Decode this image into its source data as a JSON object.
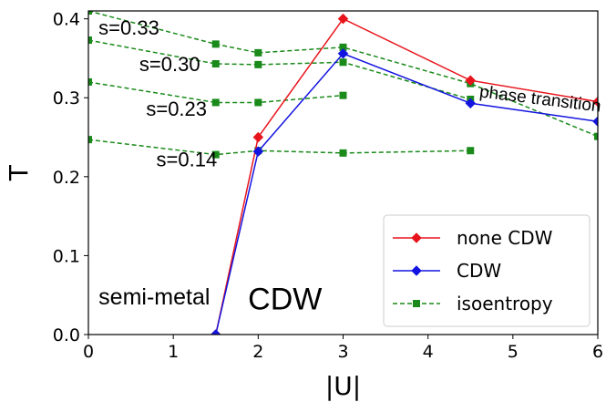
{
  "chart_data": {
    "type": "line",
    "xlabel": "|U|",
    "ylabel": "T",
    "xlim": [
      0,
      6
    ],
    "ylim": [
      0,
      0.41
    ],
    "xticks": [
      0,
      1,
      2,
      3,
      4,
      5,
      6
    ],
    "yticks": [
      0.0,
      0.1,
      0.2,
      0.3,
      0.4
    ],
    "yticklabels": [
      "0.0",
      "0.1",
      "0.2",
      "0.3",
      "0.4"
    ],
    "grid": false,
    "legend_position": "bottom-right",
    "series": [
      {
        "name": "none CDW",
        "color": "#e8141c",
        "marker": "diamond",
        "style": "solid",
        "x": [
          1.5,
          2,
          3,
          4.5,
          6
        ],
        "y": [
          0.0,
          0.25,
          0.4,
          0.322,
          0.295
        ]
      },
      {
        "name": "CDW",
        "color": "#1414e0",
        "marker": "diamond",
        "style": "solid",
        "x": [
          1.5,
          2,
          3,
          4.5,
          6
        ],
        "y": [
          0.0,
          0.232,
          0.356,
          0.293,
          0.27
        ]
      }
    ],
    "isoentropy": {
      "name": "isoentropy",
      "color": "#1a8a1a",
      "marker": "square",
      "style": "dashed",
      "curves": [
        {
          "x": [
            0,
            1.5,
            2,
            3,
            4.5,
            6
          ],
          "y": [
            0.41,
            0.368,
            0.357,
            0.364,
            0.318,
            0.251
          ]
        },
        {
          "x": [
            0,
            1.5,
            2,
            3,
            4.5
          ],
          "y": [
            0.373,
            0.343,
            0.342,
            0.345,
            0.298
          ]
        },
        {
          "x": [
            0,
            1.5,
            2,
            3
          ],
          "y": [
            0.32,
            0.294,
            0.294,
            0.303
          ]
        },
        {
          "x": [
            0,
            1.5,
            2,
            3,
            4.5
          ],
          "y": [
            0.247,
            0.228,
            0.233,
            0.23,
            0.233
          ]
        }
      ]
    },
    "annotations": [
      {
        "text": "s=0.33",
        "x": 0.12,
        "y": 0.38,
        "size": 22,
        "rotate": 0
      },
      {
        "text": "s=0.30",
        "x": 0.6,
        "y": 0.334,
        "size": 22,
        "rotate": 0
      },
      {
        "text": "s=0.23",
        "x": 0.68,
        "y": 0.277,
        "size": 22,
        "rotate": 0
      },
      {
        "text": "s=0.14",
        "x": 0.8,
        "y": 0.213,
        "size": 22,
        "rotate": 0
      },
      {
        "text": "phase transition",
        "x": 4.6,
        "y": 0.301,
        "size": 19,
        "rotate": 7
      },
      {
        "text": "semi-metal",
        "x": 0.12,
        "y": 0.038,
        "size": 25,
        "rotate": 0
      },
      {
        "text": "CDW",
        "x": 1.88,
        "y": 0.032,
        "size": 34,
        "rotate": 0
      }
    ]
  }
}
